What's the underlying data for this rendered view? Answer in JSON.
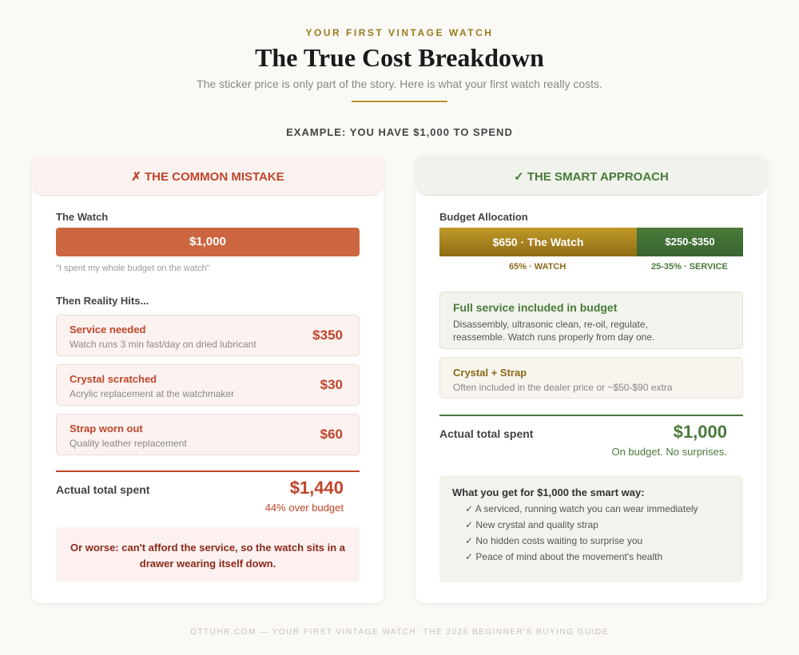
{
  "header": {
    "eyebrow": "YOUR FIRST VINTAGE WATCH",
    "title": "The True Cost Breakdown",
    "subtitle": "The sticker price is only part of the story. Here is what your first watch really costs.",
    "example": "EXAMPLE: YOU HAVE $1,000 TO SPEND"
  },
  "mistake": {
    "title": "✗ THE COMMON MISTAKE",
    "watch_label": "The Watch",
    "watch_price": "$1,000",
    "quote": "\"I spent my whole budget on the watch\"",
    "reality_label": "Then Reality Hits...",
    "items": [
      {
        "title": "Service needed",
        "desc": "Watch runs 3 min fast/day on dried lubricant",
        "price": "$350"
      },
      {
        "title": "Crystal scratched",
        "desc": "Acrylic replacement at the watchmaker",
        "price": "$30"
      },
      {
        "title": "Strap worn out",
        "desc": "Quality leather replacement",
        "price": "$60"
      }
    ],
    "total_label": "Actual total spent",
    "total": "$1,440",
    "total_note": "44% over budget",
    "worse": "Or worse: can't afford the service, so the watch sits in a drawer wearing itself down."
  },
  "smart": {
    "title": "✓ THE SMART APPROACH",
    "alloc_label": "Budget Allocation",
    "watch_bar": "$650 · The Watch",
    "service_bar": "$250-$350",
    "watch_share_pct": 65,
    "watch_pct": "65% · WATCH",
    "service_pct": "25-35% · SERVICE",
    "service_title": "Full service included in budget",
    "service_desc": "Disassembly, ultrasonic clean, re-oil, regulate, reassemble. Watch runs properly from day one.",
    "crystal_title": "Crystal + Strap",
    "crystal_desc": "Often included in the dealer price or ~$50-$90 extra",
    "total_label": "Actual total spent",
    "total": "$1,000",
    "total_note": "On budget. No surprises.",
    "get_title": "What you get for $1,000 the smart way:",
    "get_items": [
      "✓ A serviced, running watch you can wear immediately",
      "✓ New crystal and quality strap",
      "✓ No hidden costs waiting to surprise you",
      "✓ Peace of mind about the movement's health"
    ]
  },
  "footer": "OTTUHR.COM — YOUR FIRST VINTAGE WATCH: THE 2026 BEGINNER'S BUYING GUIDE",
  "colors": {
    "mistake": "#c0452a",
    "smart": "#4a7a3a",
    "gold": "#b8912a"
  }
}
